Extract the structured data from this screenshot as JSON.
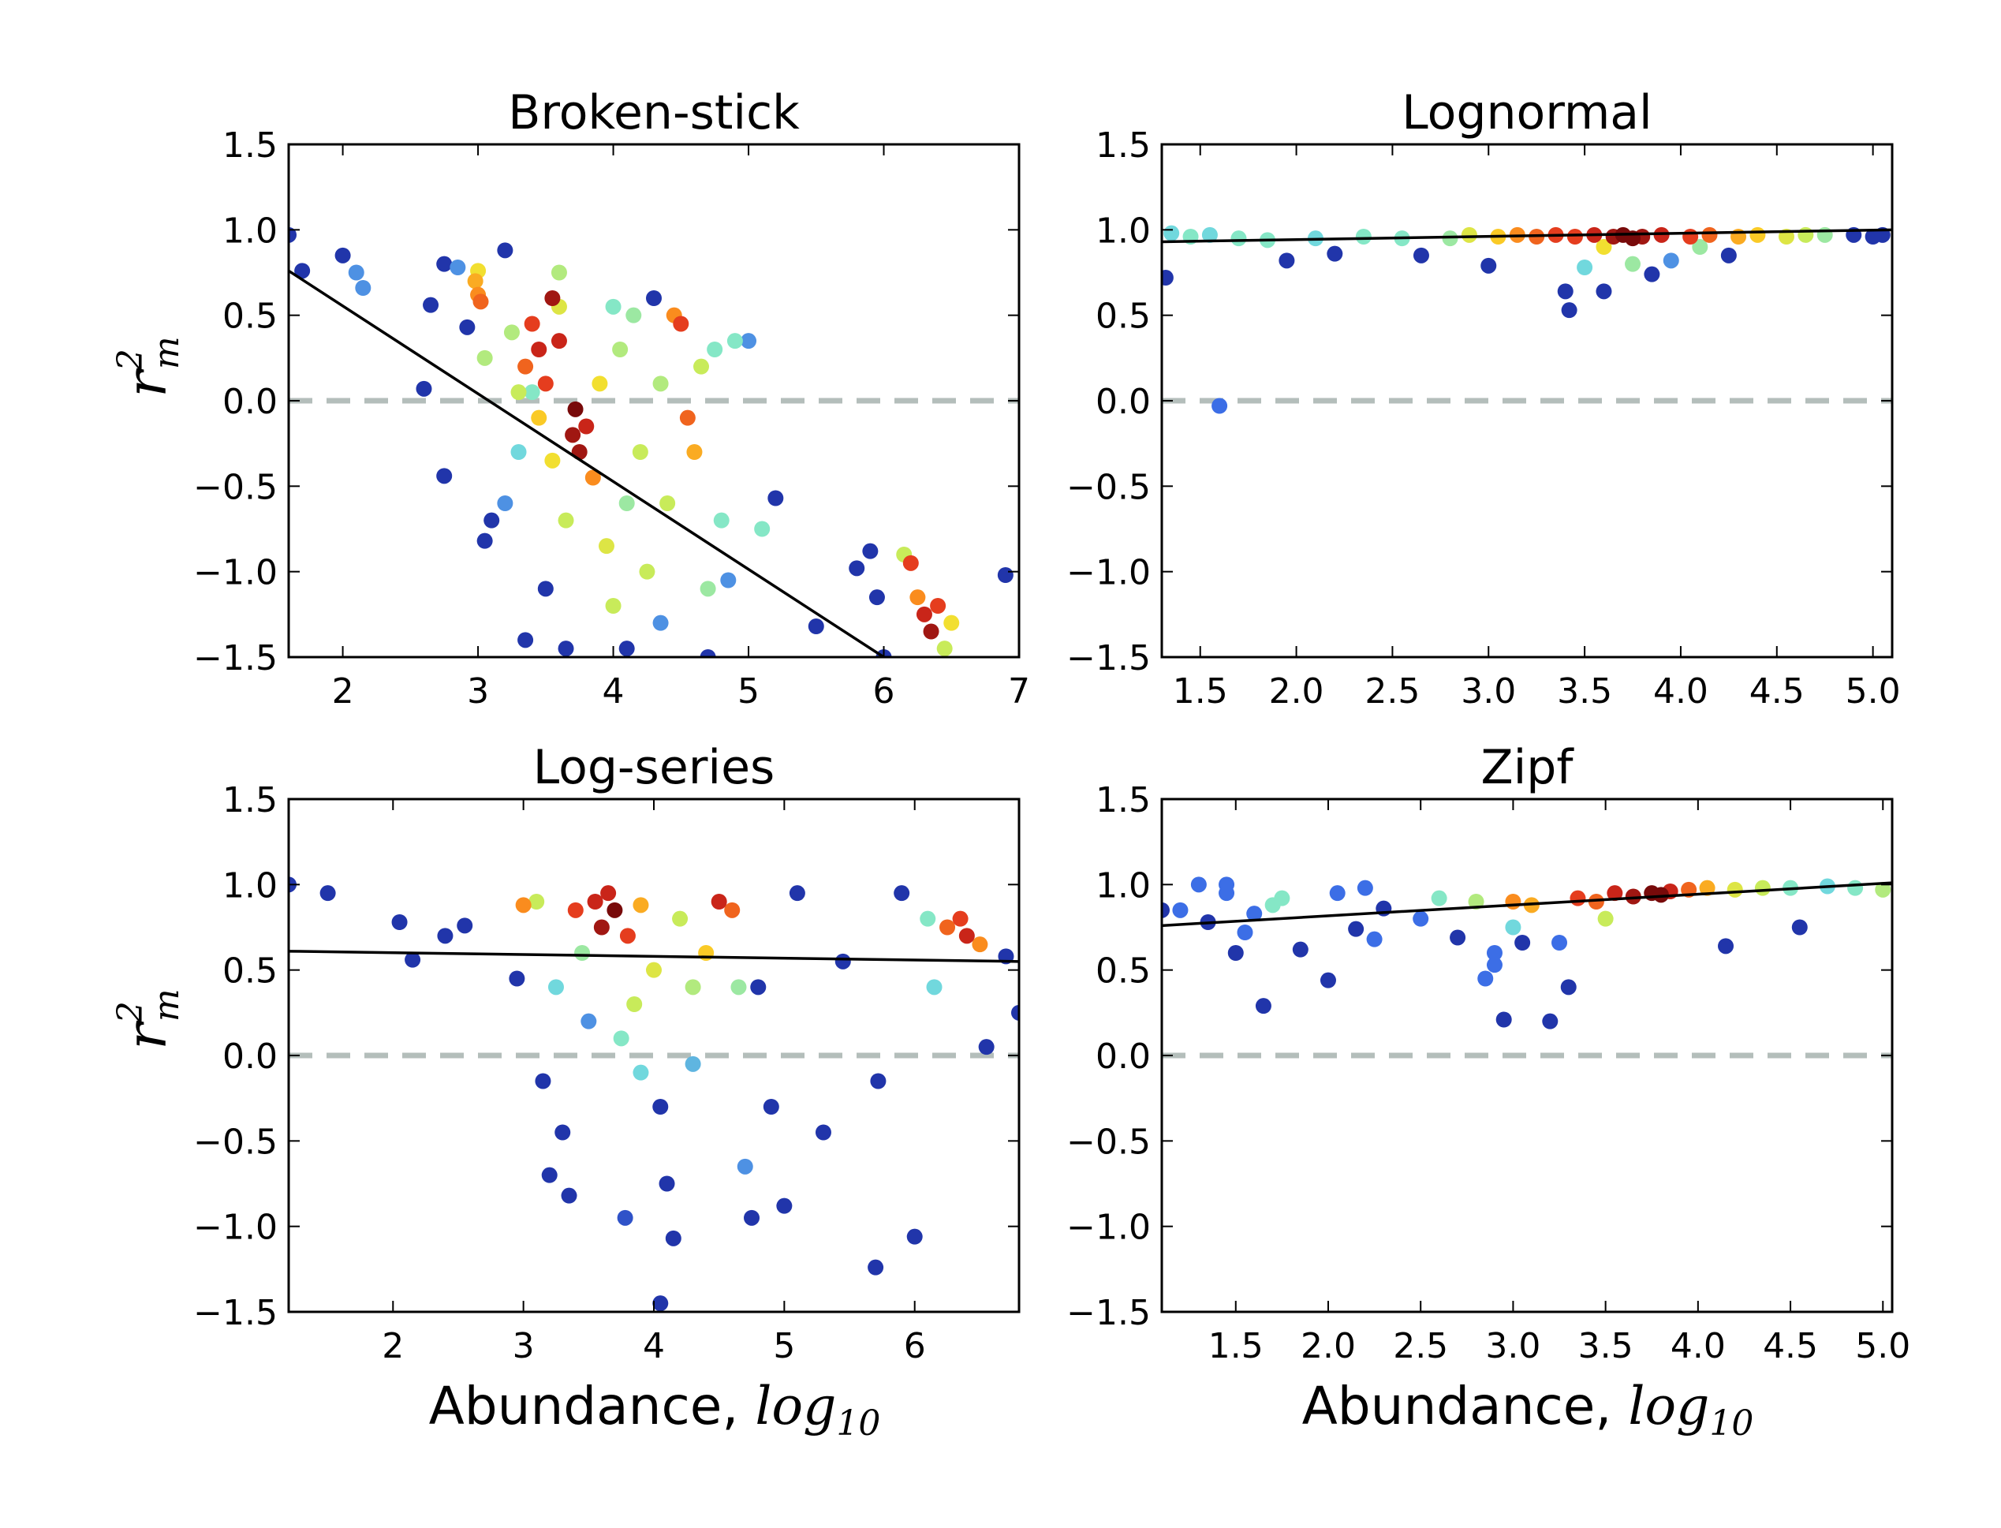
{
  "figure": {
    "xlabel_text": "Abundance, ",
    "xlabel_math": "log",
    "xlabel_sub": "10",
    "ylabel_main": "r",
    "ylabel_sup": "2",
    "ylabel_sub": "m"
  },
  "chart_data": [
    {
      "type": "scatter",
      "title": "Broken-stick",
      "xlim": [
        1.6,
        7.0
      ],
      "ylim": [
        -1.5,
        1.5
      ],
      "xticks": [
        "2",
        "3",
        "4",
        "5",
        "6",
        "7"
      ],
      "xtick_values": [
        2,
        3,
        4,
        5,
        6,
        7
      ],
      "yticks": [
        "1.5",
        "1.0",
        "0.5",
        "0.0",
        "−0.5",
        "−1.0",
        "−1.5"
      ],
      "ytick_values": [
        1.5,
        1.0,
        0.5,
        0.0,
        -0.5,
        -1.0,
        -1.5
      ],
      "reference_line_y": 0.0,
      "fit_line": [
        [
          1.6,
          0.76
        ],
        [
          6.0,
          -1.5
        ]
      ],
      "points": [
        [
          1.6,
          0.97,
          0.05
        ],
        [
          1.7,
          0.76,
          0.05
        ],
        [
          2.0,
          0.85,
          0.05
        ],
        [
          2.1,
          0.75,
          0.2
        ],
        [
          2.15,
          0.66,
          0.2
        ],
        [
          2.6,
          0.07,
          0.05
        ],
        [
          2.65,
          0.56,
          0.05
        ],
        [
          2.75,
          0.8,
          0.05
        ],
        [
          2.75,
          -0.44,
          0.05
        ],
        [
          2.85,
          0.78,
          0.2
        ],
        [
          2.92,
          0.43,
          0.05
        ],
        [
          3.0,
          0.76,
          0.6
        ],
        [
          3.0,
          0.62,
          0.75
        ],
        [
          3.02,
          0.58,
          0.8
        ],
        [
          2.98,
          0.7,
          0.7
        ],
        [
          3.05,
          0.25,
          0.45
        ],
        [
          3.1,
          -0.7,
          0.05
        ],
        [
          3.05,
          -0.82,
          0.05
        ],
        [
          3.2,
          0.88,
          0.05
        ],
        [
          3.25,
          0.4,
          0.45
        ],
        [
          3.3,
          0.05,
          0.5
        ],
        [
          3.35,
          0.2,
          0.8
        ],
        [
          3.4,
          0.45,
          0.85
        ],
        [
          3.45,
          0.3,
          0.9
        ],
        [
          3.5,
          0.1,
          0.85
        ],
        [
          3.45,
          -0.1,
          0.65
        ],
        [
          3.55,
          -0.35,
          0.6
        ],
        [
          3.6,
          0.55,
          0.55
        ],
        [
          3.6,
          0.75,
          0.45
        ],
        [
          3.65,
          -0.7,
          0.5
        ],
        [
          3.7,
          -0.2,
          0.95
        ],
        [
          3.75,
          -0.3,
          0.95
        ],
        [
          3.72,
          -0.05,
          1.0
        ],
        [
          3.8,
          -0.15,
          0.9
        ],
        [
          3.85,
          -0.45,
          0.75
        ],
        [
          3.9,
          0.1,
          0.6
        ],
        [
          3.95,
          -0.85,
          0.55
        ],
        [
          4.0,
          -1.2,
          0.5
        ],
        [
          4.05,
          0.3,
          0.45
        ],
        [
          4.1,
          -0.6,
          0.4
        ],
        [
          4.15,
          0.5,
          0.4
        ],
        [
          4.2,
          -0.3,
          0.5
        ],
        [
          4.25,
          -1.0,
          0.5
        ],
        [
          4.3,
          0.6,
          0.05
        ],
        [
          4.35,
          0.1,
          0.45
        ],
        [
          4.4,
          -0.6,
          0.5
        ],
        [
          4.45,
          0.5,
          0.75
        ],
        [
          4.5,
          0.45,
          0.85
        ],
        [
          4.55,
          -0.1,
          0.8
        ],
        [
          4.6,
          -0.3,
          0.7
        ],
        [
          4.65,
          0.2,
          0.5
        ],
        [
          4.7,
          -1.1,
          0.4
        ],
        [
          4.75,
          0.3,
          0.35
        ],
        [
          4.8,
          -0.7,
          0.35
        ],
        [
          4.9,
          0.35,
          0.35
        ],
        [
          5.0,
          0.35,
          0.2
        ],
        [
          5.1,
          -0.75,
          0.35
        ],
        [
          4.85,
          -1.05,
          0.2
        ],
        [
          5.2,
          -0.57,
          0.05
        ],
        [
          3.35,
          -1.4,
          0.05
        ],
        [
          3.5,
          -1.1,
          0.05
        ],
        [
          3.65,
          -1.45,
          0.05
        ],
        [
          4.1,
          -1.45,
          0.05
        ],
        [
          4.35,
          -1.3,
          0.2
        ],
        [
          4.7,
          -1.5,
          0.05
        ],
        [
          5.5,
          -1.32,
          0.05
        ],
        [
          5.8,
          -0.98,
          0.05
        ],
        [
          5.9,
          -0.88,
          0.05
        ],
        [
          5.95,
          -1.15,
          0.05
        ],
        [
          6.0,
          -1.5,
          0.05
        ],
        [
          6.15,
          -0.9,
          0.5
        ],
        [
          6.2,
          -0.95,
          0.85
        ],
        [
          6.25,
          -1.15,
          0.75
        ],
        [
          6.3,
          -1.25,
          0.9
        ],
        [
          6.35,
          -1.35,
          0.95
        ],
        [
          6.4,
          -1.2,
          0.85
        ],
        [
          6.45,
          -1.45,
          0.5
        ],
        [
          6.5,
          -1.3,
          0.6
        ],
        [
          6.9,
          -1.02,
          0.05
        ],
        [
          3.55,
          0.6,
          0.95
        ],
        [
          3.6,
          0.35,
          0.9
        ],
        [
          3.4,
          0.05,
          0.35
        ],
        [
          3.3,
          -0.3,
          0.3
        ],
        [
          3.2,
          -0.6,
          0.2
        ],
        [
          4.0,
          0.55,
          0.35
        ]
      ]
    },
    {
      "type": "scatter",
      "title": "Lognormal",
      "xlim": [
        1.3,
        5.1
      ],
      "ylim": [
        -1.5,
        1.5
      ],
      "xticks": [
        "1.5",
        "2.0",
        "2.5",
        "3.0",
        "3.5",
        "4.0",
        "4.5",
        "5.0"
      ],
      "xtick_values": [
        1.5,
        2.0,
        2.5,
        3.0,
        3.5,
        4.0,
        4.5,
        5.0
      ],
      "yticks": [
        "1.5",
        "1.0",
        "0.5",
        "0.0",
        "−0.5",
        "−1.0",
        "−1.5"
      ],
      "ytick_values": [
        1.5,
        1.0,
        0.5,
        0.0,
        -0.5,
        -1.0,
        -1.5
      ],
      "reference_line_y": 0.0,
      "fit_line": [
        [
          1.3,
          0.93
        ],
        [
          5.1,
          1.0
        ]
      ],
      "points": [
        [
          1.32,
          0.72,
          0.05
        ],
        [
          1.35,
          0.98,
          0.3
        ],
        [
          1.45,
          0.96,
          0.35
        ],
        [
          1.55,
          0.97,
          0.3
        ],
        [
          1.6,
          -0.03,
          0.15
        ],
        [
          1.7,
          0.95,
          0.35
        ],
        [
          1.85,
          0.94,
          0.35
        ],
        [
          1.95,
          0.82,
          0.05
        ],
        [
          2.1,
          0.95,
          0.3
        ],
        [
          2.2,
          0.86,
          0.05
        ],
        [
          2.35,
          0.96,
          0.35
        ],
        [
          2.55,
          0.95,
          0.35
        ],
        [
          2.65,
          0.85,
          0.05
        ],
        [
          2.8,
          0.95,
          0.4
        ],
        [
          2.9,
          0.97,
          0.55
        ],
        [
          3.0,
          0.79,
          0.05
        ],
        [
          3.05,
          0.96,
          0.65
        ],
        [
          3.15,
          0.97,
          0.75
        ],
        [
          3.25,
          0.96,
          0.8
        ],
        [
          3.35,
          0.97,
          0.85
        ],
        [
          3.4,
          0.64,
          0.05
        ],
        [
          3.42,
          0.53,
          0.05
        ],
        [
          3.45,
          0.96,
          0.85
        ],
        [
          3.55,
          0.97,
          0.9
        ],
        [
          3.6,
          0.64,
          0.05
        ],
        [
          3.65,
          0.96,
          0.95
        ],
        [
          3.7,
          0.97,
          1.0
        ],
        [
          3.75,
          0.95,
          1.0
        ],
        [
          3.8,
          0.96,
          0.95
        ],
        [
          3.85,
          0.74,
          0.05
        ],
        [
          3.9,
          0.97,
          0.9
        ],
        [
          3.95,
          0.82,
          0.2
        ],
        [
          4.05,
          0.96,
          0.85
        ],
        [
          4.15,
          0.97,
          0.8
        ],
        [
          4.25,
          0.85,
          0.05
        ],
        [
          4.3,
          0.96,
          0.7
        ],
        [
          4.4,
          0.97,
          0.65
        ],
        [
          4.55,
          0.96,
          0.55
        ],
        [
          4.65,
          0.97,
          0.5
        ],
        [
          4.75,
          0.97,
          0.4
        ],
        [
          4.9,
          0.97,
          0.05
        ],
        [
          5.0,
          0.96,
          0.05
        ],
        [
          5.05,
          0.97,
          0.05
        ],
        [
          3.5,
          0.78,
          0.3
        ],
        [
          3.75,
          0.8,
          0.4
        ],
        [
          3.6,
          0.9,
          0.6
        ],
        [
          4.1,
          0.9,
          0.4
        ]
      ]
    },
    {
      "type": "scatter",
      "title": "Log-series",
      "xlim": [
        1.2,
        6.8
      ],
      "ylim": [
        -1.5,
        1.5
      ],
      "xticks": [
        "2",
        "3",
        "4",
        "5",
        "6"
      ],
      "xtick_values": [
        2,
        3,
        4,
        5,
        6
      ],
      "yticks": [
        "1.5",
        "1.0",
        "0.5",
        "0.0",
        "−0.5",
        "−1.0",
        "−1.5"
      ],
      "ytick_values": [
        1.5,
        1.0,
        0.5,
        0.0,
        -0.5,
        -1.0,
        -1.5
      ],
      "reference_line_y": 0.0,
      "fit_line": [
        [
          1.2,
          0.61
        ],
        [
          6.8,
          0.55
        ]
      ],
      "points": [
        [
          1.2,
          1.0,
          0.05
        ],
        [
          1.5,
          0.95,
          0.05
        ],
        [
          2.05,
          0.78,
          0.05
        ],
        [
          2.15,
          0.56,
          0.05
        ],
        [
          2.4,
          0.7,
          0.05
        ],
        [
          2.55,
          0.76,
          0.05
        ],
        [
          2.95,
          0.45,
          0.05
        ],
        [
          3.0,
          0.88,
          0.75
        ],
        [
          3.1,
          0.9,
          0.5
        ],
        [
          3.15,
          -0.15,
          0.05
        ],
        [
          3.2,
          -0.7,
          0.05
        ],
        [
          3.25,
          0.4,
          0.3
        ],
        [
          3.3,
          -0.45,
          0.05
        ],
        [
          3.35,
          -0.82,
          0.05
        ],
        [
          3.4,
          0.85,
          0.85
        ],
        [
          3.45,
          0.6,
          0.4
        ],
        [
          3.5,
          0.2,
          0.2
        ],
        [
          3.55,
          0.9,
          0.9
        ],
        [
          3.6,
          0.75,
          0.95
        ],
        [
          3.65,
          0.95,
          0.9
        ],
        [
          3.7,
          0.85,
          1.0
        ],
        [
          3.75,
          0.1,
          0.35
        ],
        [
          3.78,
          -0.95,
          0.1
        ],
        [
          3.8,
          0.7,
          0.85
        ],
        [
          3.85,
          0.3,
          0.5
        ],
        [
          3.9,
          0.88,
          0.7
        ],
        [
          4.0,
          0.5,
          0.55
        ],
        [
          4.05,
          -0.3,
          0.05
        ],
        [
          4.1,
          -0.75,
          0.05
        ],
        [
          4.15,
          -1.07,
          0.05
        ],
        [
          4.2,
          0.8,
          0.5
        ],
        [
          4.3,
          0.4,
          0.45
        ],
        [
          4.4,
          0.6,
          0.65
        ],
        [
          4.5,
          0.9,
          0.9
        ],
        [
          4.6,
          0.85,
          0.8
        ],
        [
          4.65,
          0.4,
          0.4
        ],
        [
          4.7,
          -0.65,
          0.2
        ],
        [
          4.75,
          -0.95,
          0.05
        ],
        [
          4.8,
          0.4,
          0.05
        ],
        [
          4.9,
          -0.3,
          0.05
        ],
        [
          5.0,
          -0.88,
          0.05
        ],
        [
          5.1,
          0.95,
          0.05
        ],
        [
          5.3,
          -0.45,
          0.05
        ],
        [
          5.45,
          0.55,
          0.05
        ],
        [
          5.7,
          -1.24,
          0.05
        ],
        [
          5.72,
          -0.15,
          0.05
        ],
        [
          5.9,
          0.95,
          0.05
        ],
        [
          6.0,
          -1.06,
          0.05
        ],
        [
          6.1,
          0.8,
          0.35
        ],
        [
          6.15,
          0.4,
          0.3
        ],
        [
          6.25,
          0.75,
          0.8
        ],
        [
          6.35,
          0.8,
          0.85
        ],
        [
          6.4,
          0.7,
          0.9
        ],
        [
          6.5,
          0.65,
          0.75
        ],
        [
          6.55,
          0.05,
          0.05
        ],
        [
          6.7,
          0.58,
          0.05
        ],
        [
          6.8,
          0.25,
          0.05
        ],
        [
          4.05,
          -1.45,
          0.05
        ],
        [
          3.9,
          -0.1,
          0.3
        ],
        [
          4.3,
          -0.05,
          0.25
        ]
      ]
    },
    {
      "type": "scatter",
      "title": "Zipf",
      "xlim": [
        1.1,
        5.05
      ],
      "ylim": [
        -1.5,
        1.5
      ],
      "xticks": [
        "1.5",
        "2.0",
        "2.5",
        "3.0",
        "3.5",
        "4.0",
        "4.5",
        "5.0"
      ],
      "xtick_values": [
        1.5,
        2.0,
        2.5,
        3.0,
        3.5,
        4.0,
        4.5,
        5.0
      ],
      "yticks": [
        "1.5",
        "1.0",
        "0.5",
        "0.0",
        "−0.5",
        "−1.0",
        "−1.5"
      ],
      "ytick_values": [
        1.5,
        1.0,
        0.5,
        0.0,
        -0.5,
        -1.0,
        -1.5
      ],
      "reference_line_y": 0.0,
      "fit_line": [
        [
          1.1,
          0.76
        ],
        [
          5.05,
          1.01
        ]
      ],
      "points": [
        [
          1.1,
          0.85,
          0.05
        ],
        [
          1.2,
          0.85,
          0.15
        ],
        [
          1.3,
          1.0,
          0.15
        ],
        [
          1.35,
          0.78,
          0.05
        ],
        [
          1.45,
          1.0,
          0.15
        ],
        [
          1.5,
          0.6,
          0.05
        ],
        [
          1.55,
          0.72,
          0.15
        ],
        [
          1.6,
          0.83,
          0.15
        ],
        [
          1.65,
          0.29,
          0.05
        ],
        [
          1.7,
          0.88,
          0.35
        ],
        [
          1.75,
          0.92,
          0.35
        ],
        [
          1.85,
          0.62,
          0.05
        ],
        [
          2.0,
          0.44,
          0.05
        ],
        [
          2.05,
          0.95,
          0.15
        ],
        [
          2.15,
          0.74,
          0.05
        ],
        [
          2.2,
          0.98,
          0.15
        ],
        [
          2.25,
          0.68,
          0.15
        ],
        [
          2.3,
          0.86,
          0.05
        ],
        [
          2.5,
          0.8,
          0.15
        ],
        [
          2.6,
          0.92,
          0.35
        ],
        [
          2.7,
          0.69,
          0.05
        ],
        [
          2.8,
          0.9,
          0.45
        ],
        [
          2.85,
          0.45,
          0.15
        ],
        [
          2.9,
          0.53,
          0.15
        ],
        [
          2.95,
          0.21,
          0.05
        ],
        [
          3.0,
          0.9,
          0.75
        ],
        [
          3.05,
          0.66,
          0.05
        ],
        [
          3.1,
          0.88,
          0.7
        ],
        [
          3.2,
          0.2,
          0.05
        ],
        [
          3.25,
          0.66,
          0.15
        ],
        [
          3.3,
          0.4,
          0.05
        ],
        [
          3.35,
          0.92,
          0.85
        ],
        [
          3.45,
          0.9,
          0.8
        ],
        [
          3.55,
          0.95,
          0.9
        ],
        [
          3.65,
          0.93,
          0.95
        ],
        [
          3.75,
          0.95,
          1.0
        ],
        [
          3.8,
          0.94,
          1.0
        ],
        [
          3.85,
          0.96,
          0.9
        ],
        [
          3.95,
          0.97,
          0.8
        ],
        [
          4.05,
          0.98,
          0.7
        ],
        [
          4.15,
          0.64,
          0.05
        ],
        [
          4.2,
          0.97,
          0.55
        ],
        [
          4.35,
          0.98,
          0.5
        ],
        [
          4.5,
          0.98,
          0.35
        ],
        [
          4.55,
          0.75,
          0.05
        ],
        [
          4.7,
          0.99,
          0.3
        ],
        [
          4.85,
          0.98,
          0.35
        ],
        [
          5.0,
          0.97,
          0.45
        ],
        [
          3.0,
          0.75,
          0.3
        ],
        [
          3.5,
          0.8,
          0.5
        ],
        [
          2.9,
          0.6,
          0.15
        ],
        [
          1.45,
          0.95,
          0.15
        ]
      ]
    }
  ]
}
